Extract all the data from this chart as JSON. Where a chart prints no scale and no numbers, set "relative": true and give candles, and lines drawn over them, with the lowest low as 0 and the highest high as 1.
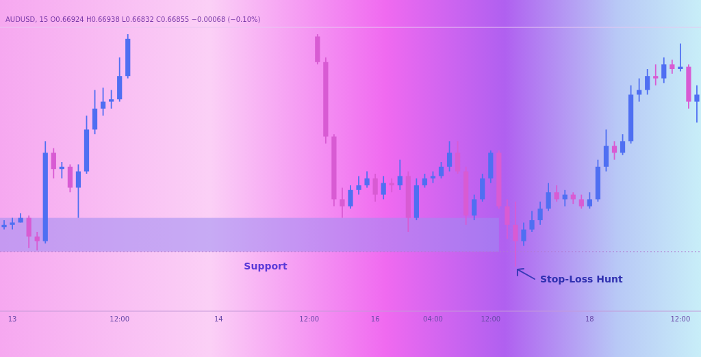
{
  "chart_data": {
    "type": "candlestick",
    "relative": true,
    "title": "AUDUSD, 15  O0.66924  H0.66938  L0.66832  C0.66855  −0.00068 (−0.10%)",
    "categories": [
      null,
      "13",
      null,
      null,
      null,
      null,
      null,
      null,
      null,
      null,
      null,
      null,
      null,
      null,
      "12:00",
      null,
      null,
      null,
      null,
      null,
      null,
      null,
      null,
      null,
      null,
      null,
      "14",
      null,
      null,
      null,
      null,
      null,
      null,
      null,
      null,
      null,
      null,
      "12:00",
      null,
      null,
      null,
      null,
      null,
      null,
      null,
      "16",
      null,
      null,
      null,
      null,
      null,
      null,
      "04:00",
      null,
      null,
      null,
      null,
      null,
      null,
      "12:00",
      null,
      null,
      null,
      null,
      null,
      null,
      null,
      null,
      null,
      null,
      null,
      "18",
      null,
      null,
      null,
      null,
      null,
      null,
      null,
      null,
      null,
      null,
      "12:00",
      null,
      null
    ],
    "ohlc": [
      [
        0.17,
        0.2,
        0.16,
        0.18
      ],
      [
        0.18,
        0.21,
        0.16,
        0.19
      ],
      [
        0.19,
        0.23,
        0.19,
        0.21
      ],
      [
        0.21,
        0.22,
        0.08,
        0.13
      ],
      [
        0.13,
        0.15,
        0.07,
        0.11
      ],
      [
        0.11,
        0.54,
        0.1,
        0.49
      ],
      [
        0.49,
        0.51,
        0.38,
        0.42
      ],
      [
        0.42,
        0.45,
        0.38,
        0.43
      ],
      [
        0.43,
        0.44,
        0.32,
        0.34
      ],
      [
        0.34,
        0.44,
        0.21,
        0.41
      ],
      [
        0.41,
        0.65,
        0.4,
        0.59
      ],
      [
        0.59,
        0.76,
        0.57,
        0.68
      ],
      [
        0.68,
        0.77,
        0.65,
        0.71
      ],
      [
        0.71,
        0.76,
        0.68,
        0.72
      ],
      [
        0.72,
        0.9,
        0.71,
        0.82
      ],
      [
        0.82,
        1.0,
        0.81,
        0.98
      ],
      null,
      null,
      null,
      null,
      null,
      null,
      null,
      null,
      null,
      null,
      null,
      null,
      null,
      null,
      null,
      null,
      null,
      null,
      null,
      null,
      null,
      null,
      [
        0.99,
        1.0,
        0.87,
        0.88
      ],
      [
        0.88,
        0.9,
        0.53,
        0.56
      ],
      [
        0.56,
        0.57,
        0.26,
        0.29
      ],
      [
        0.29,
        0.34,
        0.21,
        0.26
      ],
      [
        0.26,
        0.35,
        0.25,
        0.33
      ],
      [
        0.33,
        0.39,
        0.31,
        0.35
      ],
      [
        0.35,
        0.41,
        0.34,
        0.38
      ],
      [
        0.38,
        0.4,
        0.28,
        0.31
      ],
      [
        0.31,
        0.39,
        0.29,
        0.36
      ],
      [
        0.36,
        0.38,
        0.32,
        0.35
      ],
      [
        0.35,
        0.46,
        0.33,
        0.39
      ],
      [
        0.39,
        0.41,
        0.15,
        0.21
      ],
      [
        0.21,
        0.38,
        0.2,
        0.35
      ],
      [
        0.35,
        0.4,
        0.34,
        0.38
      ],
      [
        0.38,
        0.41,
        0.36,
        0.39
      ],
      [
        0.39,
        0.45,
        0.38,
        0.43
      ],
      [
        0.43,
        0.54,
        0.41,
        0.49
      ],
      [
        0.49,
        0.54,
        0.4,
        0.41
      ],
      [
        0.41,
        0.43,
        0.18,
        0.22
      ],
      [
        0.22,
        0.31,
        0.2,
        0.29
      ],
      [
        0.29,
        0.4,
        0.28,
        0.38
      ],
      [
        0.38,
        0.5,
        0.36,
        0.49
      ],
      [
        0.49,
        0.5,
        0.25,
        0.26
      ],
      [
        0.26,
        0.29,
        0.12,
        0.18
      ],
      [
        0.18,
        0.28,
        0,
        0.11
      ],
      [
        0.11,
        0.19,
        0.09,
        0.16
      ],
      [
        0.16,
        0.24,
        0.15,
        0.2
      ],
      [
        0.2,
        0.28,
        0.18,
        0.25
      ],
      [
        0.25,
        0.36,
        0.24,
        0.32
      ],
      [
        0.32,
        0.35,
        0.28,
        0.29
      ],
      [
        0.29,
        0.33,
        0.26,
        0.31
      ],
      [
        0.31,
        0.32,
        0.27,
        0.29
      ],
      [
        0.29,
        0.31,
        0.25,
        0.26
      ],
      [
        0.26,
        0.32,
        0.25,
        0.29
      ],
      [
        0.29,
        0.46,
        0.28,
        0.43
      ],
      [
        0.43,
        0.59,
        0.41,
        0.52
      ],
      [
        0.52,
        0.54,
        0.46,
        0.49
      ],
      [
        0.49,
        0.57,
        0.48,
        0.54
      ],
      [
        0.54,
        0.78,
        0.53,
        0.74
      ],
      [
        0.74,
        0.81,
        0.71,
        0.76
      ],
      [
        0.76,
        0.85,
        0.74,
        0.82
      ],
      [
        0.82,
        0.87,
        0.78,
        0.81
      ],
      [
        0.81,
        0.9,
        0.79,
        0.87
      ],
      [
        0.87,
        0.89,
        0.83,
        0.85
      ],
      [
        0.85,
        0.96,
        0.84,
        0.86
      ],
      [
        0.86,
        0.87,
        0.68,
        0.71
      ],
      [
        0.71,
        0.78,
        0.62,
        0.74
      ]
    ],
    "bands": [
      {
        "axis": "y",
        "from": 0.065,
        "to": 0.21,
        "label": "Support",
        "color": "#9c8cf2"
      }
    ],
    "ref_lines": [
      {
        "axis": "y",
        "value": 0.065,
        "line_style": "dotted",
        "color": "#b07ad0"
      }
    ],
    "annotations": [
      "Stop-Loss Hunt"
    ]
  }
}
